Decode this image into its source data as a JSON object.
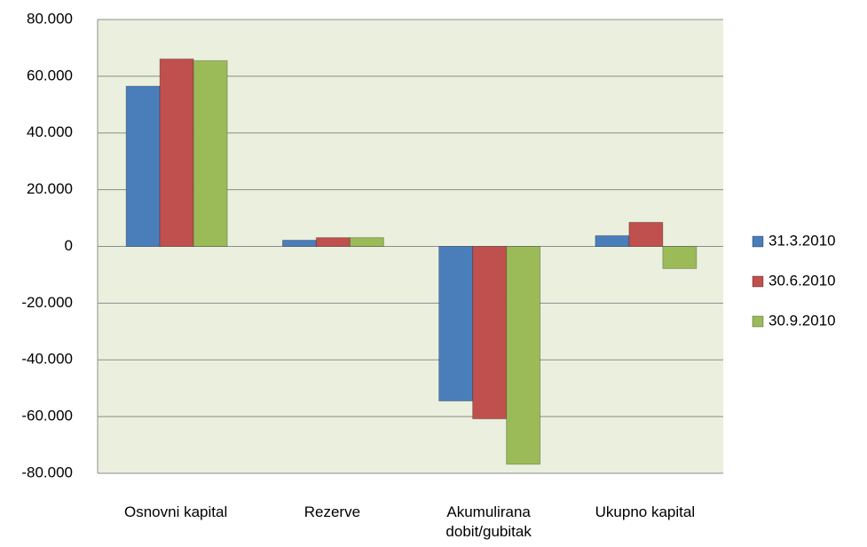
{
  "chart_data": {
    "type": "bar",
    "categories": [
      "Osnovni kapital",
      "Rezerve",
      "Akumulirana dobit/gubitak",
      "Ukupno kapital"
    ],
    "series": [
      {
        "name": "31.3.2010",
        "color": "#4a7ebb",
        "values": [
          56500,
          2200,
          -54500,
          3800
        ]
      },
      {
        "name": "30.6.2010",
        "color": "#c0504d",
        "values": [
          66100,
          3100,
          -60800,
          8500
        ]
      },
      {
        "name": "30.9.2010",
        "color": "#9bbb59",
        "values": [
          65500,
          3100,
          -76800,
          -7800
        ]
      }
    ],
    "ylim": [
      -80000,
      80000
    ],
    "yticks": [
      {
        "value": -80000,
        "label": "-80.000"
      },
      {
        "value": -60000,
        "label": "-60.000"
      },
      {
        "value": -40000,
        "label": "-40.000"
      },
      {
        "value": -20000,
        "label": "-20.000"
      },
      0,
      {
        "value": 20000,
        "label": "20.000"
      },
      {
        "value": 40000,
        "label": "40.000"
      },
      {
        "value": 60000,
        "label": "60.000"
      },
      {
        "value": 80000,
        "label": "80.000"
      }
    ],
    "grid": true,
    "legend": "right",
    "plot_background": "#ebf0de"
  }
}
